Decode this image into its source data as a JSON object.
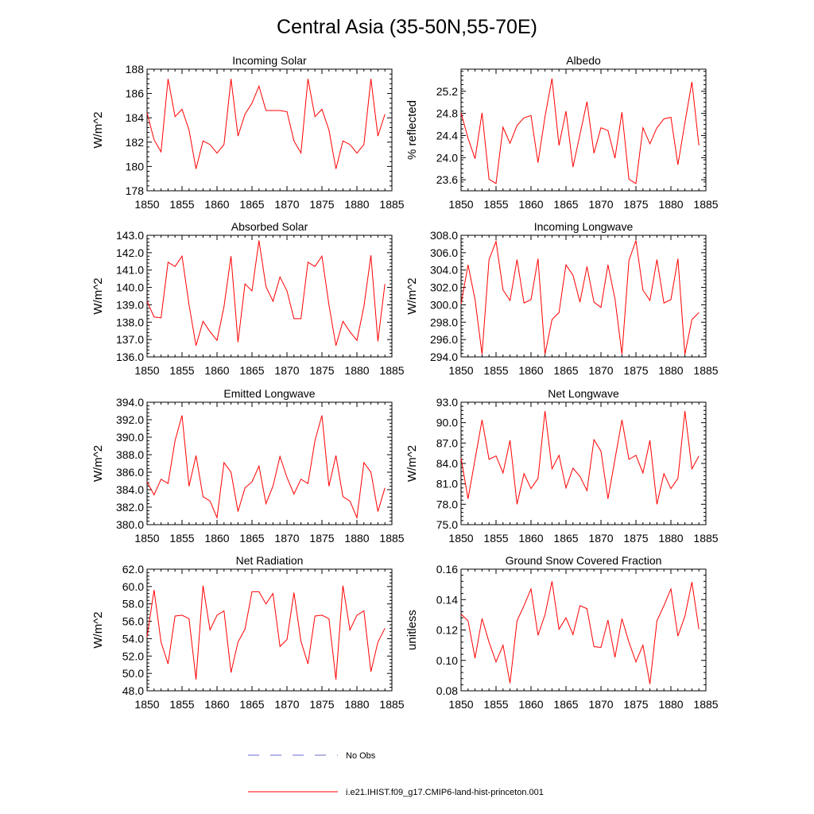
{
  "title": "Central Asia (35-50N,55-70E)",
  "legend": [
    {
      "label": "No Obs",
      "color": "#6a6ad0",
      "dash": true
    },
    {
      "label": "i.e21.IHIST.f09_g17.CMIP6-land-hist-princeton.001",
      "color": "#ff0000",
      "dash": false
    }
  ],
  "chart_data": [
    {
      "type": "line",
      "title": "Incoming Solar",
      "ylabel": "W/m^2",
      "xlim": [
        1850,
        1885
      ],
      "ylim": [
        178,
        188
      ],
      "xticks": [
        1850,
        1855,
        1860,
        1865,
        1870,
        1875,
        1880,
        1885
      ],
      "yticks": [
        178,
        180,
        182,
        184,
        186,
        188
      ],
      "ytick_labels": [
        "178",
        "180",
        "182",
        "184",
        "186",
        "188"
      ],
      "x": [
        1850,
        1851,
        1852,
        1853,
        1854,
        1855,
        1856,
        1857,
        1858,
        1859,
        1860,
        1861,
        1862,
        1863,
        1864,
        1865,
        1866,
        1867,
        1868,
        1869,
        1870,
        1871,
        1872,
        1873,
        1874,
        1875,
        1876,
        1877,
        1878,
        1879,
        1880,
        1881,
        1882,
        1883,
        1884
      ],
      "series": [
        {
          "values": [
            184.4,
            182.2,
            181.2,
            187.2,
            184.1,
            184.7,
            183.0,
            179.8,
            182.1,
            181.8,
            181.1,
            181.8,
            187.2,
            182.5,
            184.3,
            185.2,
            186.6,
            184.6,
            184.6,
            184.6,
            184.5,
            182.1,
            181.1,
            187.2,
            184.1,
            184.7,
            183.0,
            179.8,
            182.1,
            181.8,
            181.1,
            181.8,
            187.2,
            182.5,
            184.3
          ]
        }
      ]
    },
    {
      "type": "line",
      "title": "Albedo",
      "ylabel": "% reflected",
      "xlim": [
        1850,
        1885
      ],
      "ylim": [
        23.4,
        25.6
      ],
      "xticks": [
        1850,
        1855,
        1860,
        1865,
        1870,
        1875,
        1880,
        1885
      ],
      "yticks": [
        23.6,
        24.0,
        24.4,
        24.8,
        25.2
      ],
      "ytick_labels": [
        "23.6",
        "24.0",
        "24.4",
        "24.8",
        "25.2"
      ],
      "x": [
        1850,
        1851,
        1852,
        1853,
        1854,
        1855,
        1856,
        1857,
        1858,
        1859,
        1860,
        1861,
        1862,
        1863,
        1864,
        1865,
        1866,
        1867,
        1868,
        1869,
        1870,
        1871,
        1872,
        1873,
        1874,
        1875,
        1876,
        1877,
        1878,
        1879,
        1880,
        1881,
        1882,
        1883,
        1884
      ],
      "series": [
        {
          "values": [
            24.81,
            24.35,
            23.98,
            24.81,
            23.61,
            23.53,
            24.55,
            24.26,
            24.58,
            24.72,
            24.76,
            23.91,
            24.74,
            25.43,
            24.22,
            24.84,
            23.83,
            24.42,
            25.01,
            24.08,
            24.54,
            24.49,
            23.99,
            24.82,
            23.61,
            23.53,
            24.54,
            24.25,
            24.54,
            24.7,
            24.73,
            23.87,
            24.63,
            25.37,
            24.22
          ]
        }
      ]
    },
    {
      "type": "line",
      "title": "Absorbed Solar",
      "ylabel": "W/m^2",
      "xlim": [
        1850,
        1885
      ],
      "ylim": [
        136,
        143
      ],
      "xticks": [
        1850,
        1855,
        1860,
        1865,
        1870,
        1875,
        1880,
        1885
      ],
      "yticks": [
        136,
        137,
        138,
        139,
        140,
        141,
        142,
        143
      ],
      "ytick_labels": [
        "136.0",
        "137.0",
        "138.0",
        "139.0",
        "140.0",
        "141.0",
        "142.0",
        "143.0"
      ],
      "x": [
        1850,
        1851,
        1852,
        1853,
        1854,
        1855,
        1856,
        1857,
        1858,
        1859,
        1860,
        1861,
        1862,
        1863,
        1864,
        1865,
        1866,
        1867,
        1868,
        1869,
        1870,
        1871,
        1872,
        1873,
        1874,
        1875,
        1876,
        1877,
        1878,
        1879,
        1880,
        1881,
        1882,
        1883,
        1884
      ],
      "series": [
        {
          "values": [
            139.2,
            138.3,
            138.25,
            141.45,
            141.2,
            141.8,
            139.0,
            136.65,
            138.05,
            137.45,
            136.95,
            138.9,
            141.8,
            136.85,
            140.2,
            139.8,
            142.7,
            140.05,
            139.2,
            140.6,
            139.8,
            138.2,
            138.2,
            141.45,
            141.2,
            141.8,
            139.0,
            136.65,
            138.05,
            137.45,
            136.95,
            138.9,
            141.85,
            136.9,
            140.2
          ]
        }
      ]
    },
    {
      "type": "line",
      "title": "Incoming Longwave",
      "ylabel": "W/m^2",
      "xlim": [
        1850,
        1885
      ],
      "ylim": [
        294,
        308
      ],
      "xticks": [
        1850,
        1855,
        1860,
        1865,
        1870,
        1875,
        1880,
        1885
      ],
      "yticks": [
        294,
        296,
        298,
        300,
        302,
        304,
        306,
        308
      ],
      "ytick_labels": [
        "294.0",
        "296.0",
        "298.0",
        "300.0",
        "302.0",
        "304.0",
        "306.0",
        "308.0"
      ],
      "x": [
        1850,
        1851,
        1852,
        1853,
        1854,
        1855,
        1856,
        1857,
        1858,
        1859,
        1860,
        1861,
        1862,
        1863,
        1864,
        1865,
        1866,
        1867,
        1868,
        1869,
        1870,
        1871,
        1872,
        1873,
        1874,
        1875,
        1876,
        1877,
        1878,
        1879,
        1880,
        1881,
        1882,
        1883,
        1884
      ],
      "series": [
        {
          "values": [
            300.1,
            304.6,
            300.6,
            294.3,
            305.2,
            307.3,
            301.7,
            300.5,
            305.2,
            300.2,
            300.6,
            305.3,
            294.3,
            298.3,
            299.1,
            304.6,
            303.4,
            300.3,
            304.4,
            300.3,
            299.7,
            304.6,
            300.7,
            294.3,
            305.1,
            307.4,
            301.7,
            300.5,
            305.2,
            300.2,
            300.6,
            305.3,
            294.3,
            298.3,
            299.1
          ]
        }
      ]
    },
    {
      "type": "line",
      "title": "Emitted Longwave",
      "ylabel": "W/m^2",
      "xlim": [
        1850,
        1885
      ],
      "ylim": [
        380,
        394
      ],
      "xticks": [
        1850,
        1855,
        1860,
        1865,
        1870,
        1875,
        1880,
        1885
      ],
      "yticks": [
        380,
        382,
        384,
        386,
        388,
        390,
        392,
        394
      ],
      "ytick_labels": [
        "380.0",
        "382.0",
        "384.0",
        "386.0",
        "388.0",
        "390.0",
        "392.0",
        "394.0"
      ],
      "x": [
        1850,
        1851,
        1852,
        1853,
        1854,
        1855,
        1856,
        1857,
        1858,
        1859,
        1860,
        1861,
        1862,
        1863,
        1864,
        1865,
        1866,
        1867,
        1868,
        1869,
        1870,
        1871,
        1872,
        1873,
        1874,
        1875,
        1876,
        1877,
        1878,
        1879,
        1880,
        1881,
        1882,
        1883,
        1884
      ],
      "series": [
        {
          "values": [
            384.9,
            383.4,
            385.2,
            384.7,
            389.6,
            392.5,
            384.4,
            387.9,
            383.2,
            382.7,
            380.8,
            387.1,
            386.0,
            381.5,
            384.2,
            384.9,
            386.7,
            382.4,
            384.4,
            387.8,
            385.4,
            383.5,
            385.2,
            384.7,
            389.6,
            392.5,
            384.4,
            387.9,
            383.2,
            382.7,
            380.8,
            387.1,
            386.0,
            381.5,
            384.2
          ]
        }
      ]
    },
    {
      "type": "line",
      "title": "Net Longwave",
      "ylabel": "W/m^2",
      "xlim": [
        1850,
        1885
      ],
      "ylim": [
        75,
        93
      ],
      "xticks": [
        1850,
        1855,
        1860,
        1865,
        1870,
        1875,
        1880,
        1885
      ],
      "yticks": [
        75,
        78,
        81,
        84,
        87,
        90,
        93
      ],
      "ytick_labels": [
        "75.0",
        "78.0",
        "81.0",
        "84.0",
        "87.0",
        "90.0",
        "93.0"
      ],
      "x": [
        1850,
        1851,
        1852,
        1853,
        1854,
        1855,
        1856,
        1857,
        1858,
        1859,
        1860,
        1861,
        1862,
        1863,
        1864,
        1865,
        1866,
        1867,
        1868,
        1869,
        1870,
        1871,
        1872,
        1873,
        1874,
        1875,
        1876,
        1877,
        1878,
        1879,
        1880,
        1881,
        1882,
        1883,
        1884
      ],
      "series": [
        {
          "values": [
            84.8,
            78.8,
            84.6,
            90.4,
            84.6,
            85.1,
            82.6,
            87.4,
            78.0,
            82.5,
            80.3,
            81.8,
            91.7,
            83.2,
            85.2,
            80.4,
            83.3,
            82.1,
            80.0,
            87.5,
            85.8,
            78.8,
            84.6,
            90.4,
            84.6,
            85.2,
            82.6,
            87.4,
            78.0,
            82.5,
            80.3,
            81.8,
            91.7,
            83.2,
            85.1
          ]
        }
      ]
    },
    {
      "type": "line",
      "title": "Net Radiation",
      "ylabel": "W/m^2",
      "xlim": [
        1850,
        1885
      ],
      "ylim": [
        48,
        62
      ],
      "xticks": [
        1850,
        1855,
        1860,
        1865,
        1870,
        1875,
        1880,
        1885
      ],
      "yticks": [
        48,
        50,
        52,
        54,
        56,
        58,
        60,
        62
      ],
      "ytick_labels": [
        "48.0",
        "50.0",
        "52.0",
        "54.0",
        "56.0",
        "58.0",
        "60.0",
        "62.0"
      ],
      "x": [
        1850,
        1851,
        1852,
        1853,
        1854,
        1855,
        1856,
        1857,
        1858,
        1859,
        1860,
        1861,
        1862,
        1863,
        1864,
        1865,
        1866,
        1867,
        1868,
        1869,
        1870,
        1871,
        1872,
        1873,
        1874,
        1875,
        1876,
        1877,
        1878,
        1879,
        1880,
        1881,
        1882,
        1883,
        1884
      ],
      "series": [
        {
          "values": [
            54.2,
            59.6,
            53.6,
            51.1,
            56.6,
            56.7,
            56.3,
            49.3,
            60.1,
            55.0,
            56.7,
            57.2,
            50.1,
            53.6,
            55.1,
            59.4,
            59.4,
            58.0,
            59.2,
            53.1,
            53.9,
            59.3,
            53.7,
            51.1,
            56.6,
            56.7,
            56.3,
            49.3,
            60.1,
            55.0,
            56.7,
            57.2,
            50.2,
            53.6,
            55.2
          ]
        }
      ]
    },
    {
      "type": "line",
      "title": "Ground Snow Covered Fraction",
      "ylabel": "unitless",
      "xlim": [
        1850,
        1885
      ],
      "ylim": [
        0.08,
        0.16
      ],
      "xticks": [
        1850,
        1855,
        1860,
        1865,
        1870,
        1875,
        1880,
        1885
      ],
      "yticks": [
        0.08,
        0.1,
        0.12,
        0.14,
        0.16
      ],
      "ytick_labels": [
        "0.08",
        "0.10",
        "0.12",
        "0.14",
        "0.16"
      ],
      "x": [
        1850,
        1851,
        1852,
        1853,
        1854,
        1855,
        1856,
        1857,
        1858,
        1859,
        1860,
        1861,
        1862,
        1863,
        1864,
        1865,
        1866,
        1867,
        1868,
        1869,
        1870,
        1871,
        1872,
        1873,
        1874,
        1875,
        1876,
        1877,
        1878,
        1879,
        1880,
        1881,
        1882,
        1883,
        1884
      ],
      "series": [
        {
          "values": [
            0.1305,
            0.126,
            0.1015,
            0.1275,
            0.112,
            0.099,
            0.11,
            0.085,
            0.126,
            0.136,
            0.147,
            0.1165,
            0.13,
            0.152,
            0.1205,
            0.128,
            0.117,
            0.136,
            0.134,
            0.109,
            0.1085,
            0.1265,
            0.102,
            0.1275,
            0.112,
            0.099,
            0.11,
            0.0845,
            0.126,
            0.136,
            0.147,
            0.116,
            0.129,
            0.1515,
            0.1205
          ]
        }
      ]
    }
  ]
}
